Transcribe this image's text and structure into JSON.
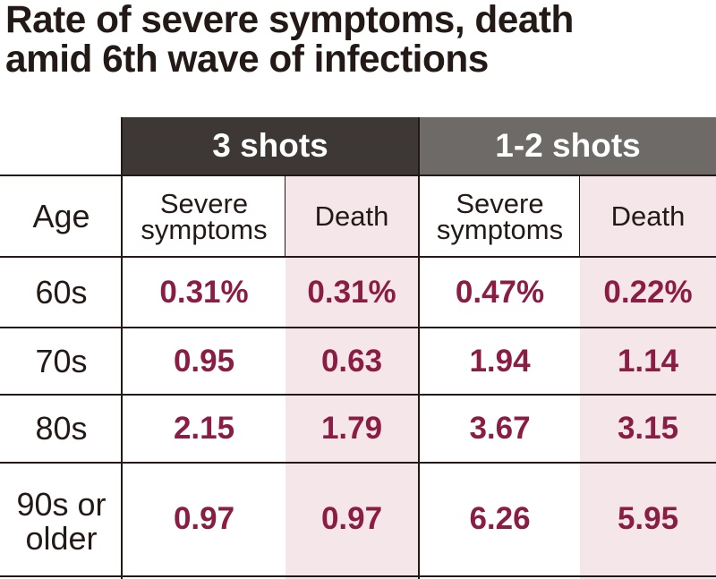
{
  "chart_data": {
    "type": "table",
    "title_lines": [
      "Rate of severe symptoms, death",
      "amid 6th wave of infections"
    ],
    "groups": [
      {
        "label": "3 shots"
      },
      {
        "label": "1-2 shots"
      }
    ],
    "row_header_label": "Age",
    "columns": [
      {
        "group": "3 shots",
        "label_lines": [
          "Severe",
          "symptoms"
        ]
      },
      {
        "group": "3 shots",
        "label_lines": [
          "Death"
        ]
      },
      {
        "group": "1-2 shots",
        "label_lines": [
          "Severe",
          "symptoms"
        ]
      },
      {
        "group": "1-2 shots",
        "label_lines": [
          "Death"
        ]
      }
    ],
    "rows": [
      {
        "age_lines": [
          "60s"
        ],
        "values": [
          "0.31%",
          "0.31%",
          "0.47%",
          "0.22%"
        ]
      },
      {
        "age_lines": [
          "70s"
        ],
        "values": [
          "0.95",
          "0.63",
          "1.94",
          "1.14"
        ]
      },
      {
        "age_lines": [
          "80s"
        ],
        "values": [
          "2.15",
          "1.79",
          "3.67",
          "3.15"
        ]
      },
      {
        "age_lines": [
          "90s or",
          "older"
        ],
        "values": [
          "0.97",
          "0.97",
          "6.26",
          "5.95"
        ]
      }
    ],
    "colors": {
      "group_3_shots_bg": "#3d3835",
      "group_1_2_shots_bg": "#6e6a67",
      "death_column_bg": "#f4e6e9",
      "value_text": "#8a1d44",
      "label_text": "#231a17"
    }
  }
}
